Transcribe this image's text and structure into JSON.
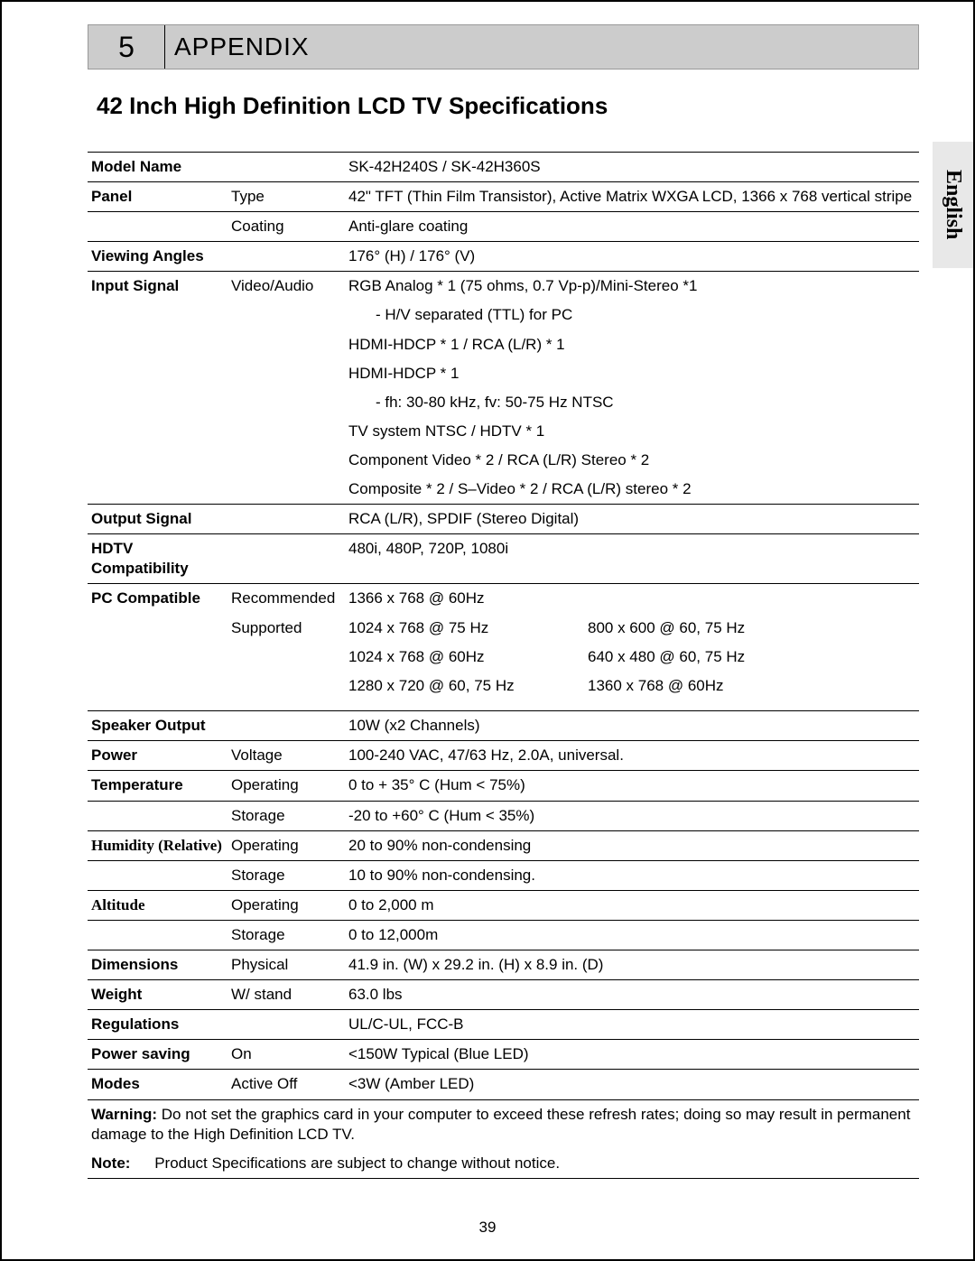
{
  "header": {
    "chapter_number": "5",
    "chapter_title": "APPENDIX"
  },
  "main_title": "42 Inch High Definition LCD TV Specifications",
  "language_tab": "English",
  "page_number": "39",
  "colors": {
    "header_bg": "#cccccc",
    "tab_bg": "#e8e8e8",
    "border": "#000000",
    "text": "#000000",
    "page_bg": "#ffffff"
  },
  "typography": {
    "body_fontsize": 17,
    "title_fontsize": 26,
    "chapter_num_fontsize": 32,
    "chapter_title_fontsize": 28,
    "lang_fontsize": 24
  },
  "spec_rows": [
    {
      "c1": "Model Name",
      "c2": "",
      "c3": "SK-42H240S / SK-42H360S",
      "top": true
    },
    {
      "c1": "Panel",
      "c2": "Type",
      "c3": "42\" TFT (Thin Film Transistor), Active Matrix WXGA LCD, 1366 x 768 vertical stripe",
      "top": true
    },
    {
      "c1": "",
      "c2": "Coating",
      "c3": "Anti-glare coating",
      "top": true
    },
    {
      "c1": "Viewing Angles",
      "c2": "",
      "c3": "176° (H) / 176° (V)",
      "top": true
    },
    {
      "c1": "Input Signal",
      "c2": "Video/Audio",
      "c3": "RGB Analog * 1 (75 ohms, 0.7 Vp-p)/Mini-Stereo *1",
      "top": true
    },
    {
      "c1": "",
      "c2": "",
      "c3": "- H/V separated (TTL) for PC",
      "indent": true
    },
    {
      "c1": "",
      "c2": "",
      "c3": "HDMI-HDCP * 1 / RCA (L/R) * 1"
    },
    {
      "c1": "",
      "c2": "",
      "c3": "HDMI-HDCP * 1"
    },
    {
      "c1": "",
      "c2": "",
      "c3": "- fh: 30-80 kHz, fv: 50-75 Hz NTSC",
      "indent": true
    },
    {
      "c1": "",
      "c2": "",
      "c3": "TV system NTSC / HDTV * 1"
    },
    {
      "c1": "",
      "c2": "",
      "c3": "Component Video * 2 / RCA (L/R) Stereo * 2"
    },
    {
      "c1": "",
      "c2": "",
      "c3": "Composite * 2 / S–Video * 2 / RCA (L/R) stereo * 2"
    },
    {
      "c1": "Output Signal",
      "c2": "",
      "c3": "RCA (L/R), SPDIF (Stereo Digital)",
      "top": true
    },
    {
      "c1": "HDTV Compatibility",
      "c2": "",
      "c3": "480i, 480P, 720P, 1080i",
      "top": true
    }
  ],
  "pc_compat": {
    "label": "PC Compatible",
    "rec_label": "Recommended",
    "rec_value": "1366 x 768 @ 60Hz",
    "sup_label": "Supported",
    "rows": [
      {
        "a": "1024 x 768 @ 75 Hz",
        "b": "800 x 600 @ 60, 75 Hz"
      },
      {
        "a": "1024 x 768 @ 60Hz",
        "b": "640 x 480 @ 60, 75 Hz"
      },
      {
        "a": "1280 x 720 @ 60, 75 Hz",
        "b": "1360 x 768 @ 60Hz"
      }
    ]
  },
  "spec_rows2": [
    {
      "c1": "Speaker Output",
      "c2": "",
      "c3": "10W (x2 Channels)",
      "top": true
    },
    {
      "c1": "Power",
      "c2": "Voltage",
      "c3": "100-240 VAC, 47/63 Hz, 2.0A, universal.",
      "top": true
    },
    {
      "c1": "Temperature",
      "c2": "Operating",
      "c3": "0 to + 35° C (Hum < 75%)",
      "top": true
    },
    {
      "c1": "",
      "c2": "Storage",
      "c3": "-20 to +60° C (Hum < 35%)",
      "top": true
    },
    {
      "c1": "Humidity (Relative)",
      "c2": "Operating",
      "c3": "20 to 90% non-condensing",
      "top": true,
      "serif1": true
    },
    {
      "c1": "",
      "c2": "Storage",
      "c3": "10 to 90% non-condensing.",
      "top": true
    },
    {
      "c1": "Altitude",
      "c2": "Operating",
      "c3": "0 to 2,000 m",
      "top": true,
      "serif1": true
    },
    {
      "c1": "",
      "c2": "Storage",
      "c3": "0 to 12,000m",
      "top": true
    },
    {
      "c1": "Dimensions",
      "c2": "Physical",
      "c3": "41.9 in. (W) x 29.2 in. (H) x 8.9 in. (D)",
      "top": true
    },
    {
      "c1": "Weight",
      "c2": "W/ stand",
      "c3": "63.0 lbs",
      "top": true
    },
    {
      "c1": "Regulations",
      "c2": "",
      "c3": "UL/C-UL, FCC-B",
      "top": true
    },
    {
      "c1": "Power saving",
      "c2": "On",
      "c3": "<150W Typical (Blue LED)",
      "top": true
    },
    {
      "c1": "Modes",
      "c2": "Active Off",
      "c3": "<3W (Amber LED)",
      "top": true
    }
  ],
  "footer": {
    "warning_label": "Warning:",
    "warning_text": "Do not set the graphics card in your computer to exceed these refresh rates; doing so may result in permanent damage to the High Definition LCD TV.",
    "note_label": "Note:",
    "note_text": "Product Specifications are subject to change without notice."
  }
}
